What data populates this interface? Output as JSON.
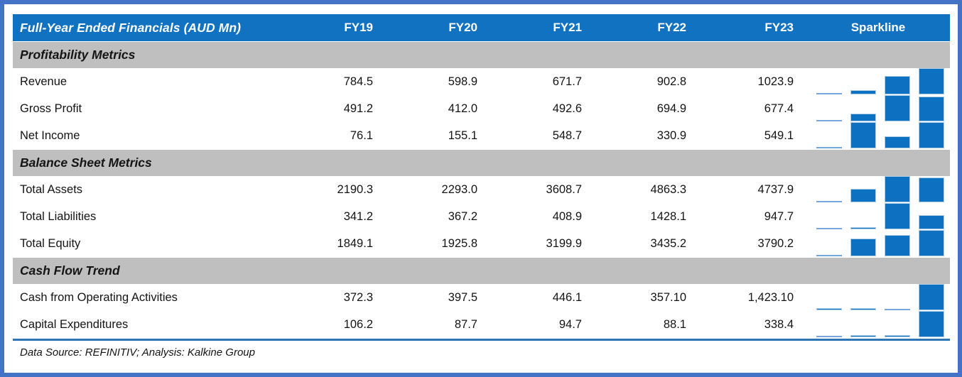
{
  "table": {
    "header": {
      "title": "Full-Year Ended Financials (AUD Mn)",
      "years": [
        "FY19",
        "FY20",
        "FY21",
        "FY22",
        "FY23"
      ],
      "spark_label": "Sparkline"
    },
    "sections": [
      {
        "title": "Profitability Metrics",
        "rows": [
          {
            "label": "Revenue",
            "values": [
              "784.5",
              "598.9",
              "671.7",
              "902.8",
              "1023.9"
            ]
          },
          {
            "label": "Gross Profit",
            "values": [
              "491.2",
              "412.0",
              "492.6",
              "694.9",
              "677.4"
            ]
          },
          {
            "label": "Net Income",
            "values": [
              "76.1",
              "155.1",
              "548.7",
              "330.9",
              "549.1"
            ]
          }
        ]
      },
      {
        "title": "Balance Sheet Metrics",
        "rows": [
          {
            "label": "Total Assets",
            "values": [
              "2190.3",
              "2293.0",
              "3608.7",
              "4863.3",
              "4737.9"
            ]
          },
          {
            "label": "Total Liabilities",
            "values": [
              "341.2",
              "367.2",
              "408.9",
              "1428.1",
              "947.7"
            ]
          },
          {
            "label": "Total Equity",
            "values": [
              "1849.1",
              "1925.8",
              "3199.9",
              "3435.2",
              "3790.2"
            ]
          }
        ]
      },
      {
        "title": "Cash Flow Trend",
        "rows": [
          {
            "label": "Cash from Operating Activities",
            "values": [
              "372.3",
              "397.5",
              "446.1",
              "357.10",
              "1,423.10"
            ]
          },
          {
            "label": "Capital Expenditures",
            "values": [
              "106.2",
              "87.7",
              "94.7",
              "88.1",
              "338.4"
            ]
          }
        ]
      }
    ]
  },
  "footer": {
    "source_note": "Data Source: REFINITIV; Analysis: Kalkine Group"
  },
  "colors": {
    "header_bg": "#1272C2",
    "section_bg": "#BFBFBF",
    "frame": "#4472C4",
    "spark_dark": "#0E70C0",
    "spark_low": "#76A6DA",
    "divider": "#2E75B6"
  },
  "chart_data": {
    "type": "table",
    "title": "Full-Year Ended Financials (AUD Mn)",
    "columns": [
      "FY19",
      "FY20",
      "FY21",
      "FY22",
      "FY23",
      "Sparkline"
    ],
    "sections": [
      {
        "title": "Profitability Metrics",
        "rows": [
          {
            "label": "Revenue",
            "values": [
              784.5,
              598.9,
              671.7,
              902.8,
              1023.9
            ]
          },
          {
            "label": "Gross Profit",
            "values": [
              491.2,
              412.0,
              492.6,
              694.9,
              677.4
            ]
          },
          {
            "label": "Net Income",
            "values": [
              76.1,
              155.1,
              548.7,
              330.9,
              549.1
            ]
          }
        ]
      },
      {
        "title": "Balance Sheet Metrics",
        "rows": [
          {
            "label": "Total Assets",
            "values": [
              2190.3,
              2293.0,
              3608.7,
              4863.3,
              4737.9
            ]
          },
          {
            "label": "Total Liabilities",
            "values": [
              341.2,
              367.2,
              408.9,
              1428.1,
              947.7
            ]
          },
          {
            "label": "Total Equity",
            "values": [
              1849.1,
              1925.8,
              3199.9,
              3435.2,
              3790.2
            ]
          }
        ]
      },
      {
        "title": "Cash Flow Trend",
        "rows": [
          {
            "label": "Cash from Operating Activities",
            "values": [
              372.3,
              397.5,
              446.1,
              357.1,
              1423.1
            ]
          },
          {
            "label": "Capital Expenditures",
            "values": [
              106.2,
              87.7,
              94.7,
              88.1,
              338.4
            ]
          }
        ]
      }
    ],
    "sparkline": {
      "type": "bar",
      "x": [
        "FY20",
        "FY21",
        "FY22",
        "FY23"
      ],
      "note": "Per-row column sparkline of FY20-FY23; each row auto-scaled from its min (drawn as thin light-blue line) to its max (full height dark-blue bar)"
    }
  }
}
